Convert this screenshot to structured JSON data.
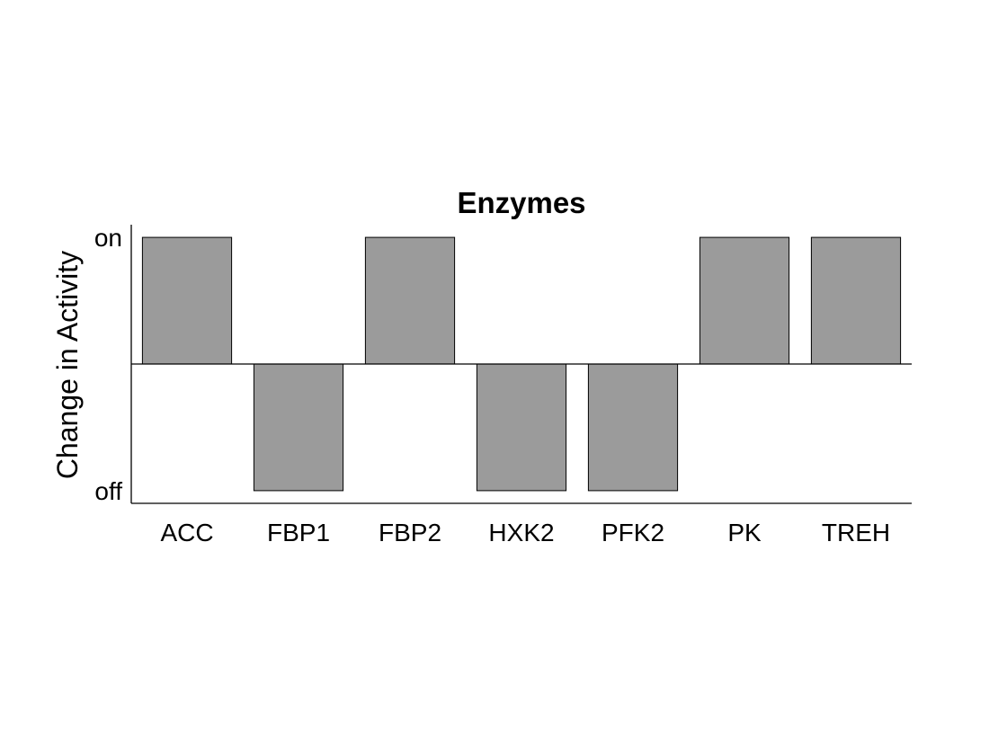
{
  "chart_data": {
    "type": "bar",
    "title": "Enzymes",
    "xlabel": "",
    "ylabel": "Change in Activity",
    "categories": [
      "ACC",
      "FBP1",
      "FBP2",
      "HXK2",
      "PFK2",
      "PK",
      "TREH"
    ],
    "values": [
      1,
      -1,
      1,
      -1,
      -1,
      1,
      1
    ],
    "ylim": [
      -1.1,
      1.1
    ],
    "yticks": [
      -1,
      1
    ],
    "ytick_labels": [
      "off",
      "on"
    ],
    "baseline": 0,
    "bar_color": "#9b9b9b",
    "edge_color": "#000000",
    "grid": false,
    "legend": "none"
  }
}
